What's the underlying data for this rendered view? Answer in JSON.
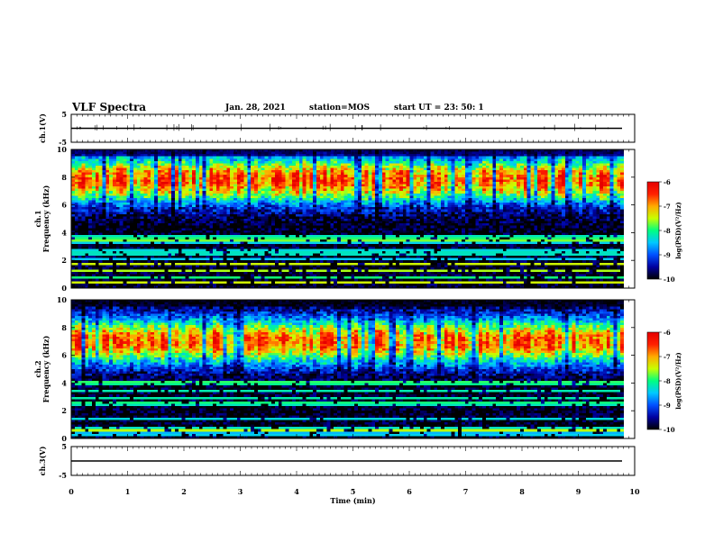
{
  "header": {
    "title": "VLF Spectra",
    "date": "Jan. 28, 2021",
    "station": "station=MOS",
    "start_ut": "start  UT  =   23: 50: 1"
  },
  "colors": {
    "colormap": [
      "#000000",
      "#0000a0",
      "#0050ff",
      "#00c8ff",
      "#00ff80",
      "#c8ff00",
      "#ffaa00",
      "#ff2000",
      "#e60000"
    ],
    "line": "#000000"
  },
  "chart_data": [
    {
      "type": "line",
      "name": "ch1-waveform",
      "ylabel": "ch.1(V)",
      "ylim": [
        -5,
        5
      ],
      "yticks": [
        "5",
        "-5"
      ],
      "x": [
        0,
        10
      ],
      "values": [
        0,
        0
      ]
    },
    {
      "type": "heatmap",
      "name": "ch1-spectrogram",
      "ylabel": "ch.1\nFrequency (kHz)",
      "ylim": [
        0,
        10
      ],
      "xlim": [
        0,
        10
      ],
      "yticks": [
        "0",
        "2",
        "4",
        "6",
        "8",
        "10"
      ],
      "data_end_min": 9.8,
      "band_center_khz": 7.8,
      "colorbar": {
        "label": "log(PSD)(V²/Hz)",
        "range": [
          -10,
          -6
        ],
        "ticks": [
          "-6",
          "-7",
          "-8",
          "-9",
          "-10"
        ]
      }
    },
    {
      "type": "heatmap",
      "name": "ch2-spectrogram",
      "ylabel": "ch.2\nFrequency (kHz)",
      "ylim": [
        0,
        10
      ],
      "xlim": [
        0,
        10
      ],
      "yticks": [
        "0",
        "2",
        "4",
        "6",
        "8",
        "10"
      ],
      "data_end_min": 9.8,
      "band_center_khz": 7.0,
      "colorbar": {
        "label": "log(PSD)(V²/Hz)",
        "range": [
          -10,
          -6
        ],
        "ticks": [
          "-6",
          "-7",
          "-8",
          "-9",
          "-10"
        ]
      }
    },
    {
      "type": "line",
      "name": "ch3-waveform",
      "ylabel": "ch.3(V)",
      "ylim": [
        -5,
        5
      ],
      "yticks": [
        "5",
        "-5"
      ],
      "x": [
        0,
        10
      ],
      "values": [
        0,
        0
      ]
    }
  ],
  "xaxis": {
    "label": "Time  (min)",
    "ticks": [
      "0",
      "1",
      "2",
      "3",
      "4",
      "5",
      "6",
      "7",
      "8",
      "9",
      "10"
    ],
    "range": [
      0,
      10
    ]
  }
}
